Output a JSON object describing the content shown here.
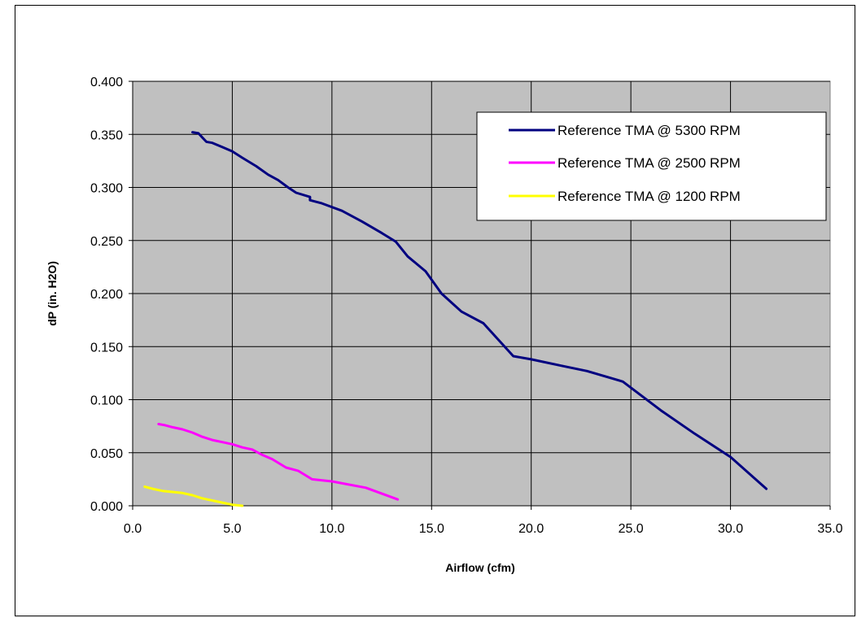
{
  "chart_data": {
    "type": "line",
    "title": "",
    "xlabel": "Airflow (cfm)",
    "ylabel": "dP (in. H2O)",
    "xlim": [
      0,
      35
    ],
    "ylim": [
      0,
      0.4
    ],
    "x_ticks": [
      "0.0",
      "5.0",
      "10.0",
      "15.0",
      "20.0",
      "25.0",
      "30.0",
      "35.0"
    ],
    "y_ticks": [
      "0.000",
      "0.050",
      "0.100",
      "0.150",
      "0.200",
      "0.250",
      "0.300",
      "0.350",
      "0.400"
    ],
    "x_tick_values": [
      0,
      5,
      10,
      15,
      20,
      25,
      30,
      35
    ],
    "y_tick_values": [
      0,
      0.05,
      0.1,
      0.15,
      0.2,
      0.25,
      0.3,
      0.35,
      0.4
    ],
    "grid": true,
    "plot_background": "#c0c0c0",
    "legend_placement": "top-right",
    "series": [
      {
        "name": "Reference TMA @ 5300 RPM",
        "color": "#000080",
        "points": [
          [
            3.0,
            0.352
          ],
          [
            3.3,
            0.351
          ],
          [
            3.5,
            0.347
          ],
          [
            3.7,
            0.343
          ],
          [
            4.0,
            0.342
          ],
          [
            4.5,
            0.338
          ],
          [
            5.0,
            0.334
          ],
          [
            5.5,
            0.328
          ],
          [
            6.2,
            0.32
          ],
          [
            6.8,
            0.312
          ],
          [
            7.3,
            0.307
          ],
          [
            7.8,
            0.3
          ],
          [
            8.2,
            0.295
          ],
          [
            8.9,
            0.291
          ],
          [
            8.9,
            0.288
          ],
          [
            9.5,
            0.285
          ],
          [
            10.5,
            0.278
          ],
          [
            11.5,
            0.268
          ],
          [
            12.5,
            0.257
          ],
          [
            13.2,
            0.249
          ],
          [
            13.8,
            0.235
          ],
          [
            14.7,
            0.221
          ],
          [
            15.5,
            0.2
          ],
          [
            16.5,
            0.183
          ],
          [
            17.6,
            0.172
          ],
          [
            19.1,
            0.141
          ],
          [
            20.0,
            0.138
          ],
          [
            21.5,
            0.132
          ],
          [
            22.8,
            0.127
          ],
          [
            24.6,
            0.117
          ],
          [
            26.5,
            0.09
          ],
          [
            28.2,
            0.068
          ],
          [
            30.0,
            0.046
          ],
          [
            31.8,
            0.016
          ]
        ]
      },
      {
        "name": "Reference TMA @ 2500 RPM",
        "color": "#ff00ff",
        "points": [
          [
            1.3,
            0.077
          ],
          [
            1.6,
            0.076
          ],
          [
            2.0,
            0.074
          ],
          [
            2.5,
            0.072
          ],
          [
            3.0,
            0.069
          ],
          [
            3.5,
            0.065
          ],
          [
            4.0,
            0.062
          ],
          [
            4.5,
            0.06
          ],
          [
            5.0,
            0.058
          ],
          [
            5.5,
            0.055
          ],
          [
            6.0,
            0.053
          ],
          [
            6.5,
            0.048
          ],
          [
            7.0,
            0.044
          ],
          [
            7.7,
            0.036
          ],
          [
            8.3,
            0.033
          ],
          [
            9.0,
            0.025
          ],
          [
            10.0,
            0.023
          ],
          [
            11.7,
            0.017
          ],
          [
            13.3,
            0.006
          ]
        ]
      },
      {
        "name": "Reference TMA @ 1200 RPM",
        "color": "#ffff00",
        "points": [
          [
            0.6,
            0.018
          ],
          [
            1.0,
            0.016
          ],
          [
            1.5,
            0.014
          ],
          [
            2.0,
            0.013
          ],
          [
            2.5,
            0.012
          ],
          [
            3.0,
            0.01
          ],
          [
            3.5,
            0.007
          ],
          [
            4.0,
            0.005
          ],
          [
            4.5,
            0.003
          ],
          [
            5.0,
            0.001
          ],
          [
            5.5,
            0.0
          ]
        ]
      }
    ]
  }
}
